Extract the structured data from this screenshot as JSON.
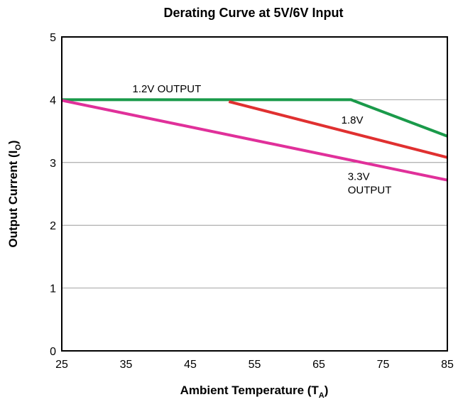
{
  "chart_data": {
    "type": "line",
    "title": "Derating Curve at 5V/6V Input",
    "xlabel": "Ambient Temperature (T",
    "xlabel_sub": "A",
    "xlabel_end": ")",
    "ylabel": "Output Current (I",
    "ylabel_sub": "O",
    "ylabel_end": ")",
    "xlim": [
      25,
      85
    ],
    "ylim": [
      0,
      5
    ],
    "xticks": [
      25,
      35,
      45,
      55,
      65,
      75,
      85
    ],
    "yticks": [
      0,
      1,
      2,
      3,
      4,
      5
    ],
    "grid": "horizontal",
    "series": [
      {
        "color": "#1a9a4a",
        "x": [
          25,
          70,
          85
        ],
        "y": [
          4.0,
          4.0,
          3.42
        ]
      },
      {
        "color": "#e03030",
        "x": [
          51,
          85
        ],
        "y": [
          3.97,
          3.08
        ]
      },
      {
        "color": "#e0309a",
        "x": [
          25,
          85
        ],
        "y": [
          3.99,
          2.72
        ]
      }
    ],
    "annotations": [
      {
        "lines": [
          "1.2V OUTPUT"
        ],
        "x": 36,
        "y": 4.12
      },
      {
        "lines": [
          "1.8V"
        ],
        "x": 68.5,
        "y": 3.62
      },
      {
        "lines": [
          "3.3V",
          "OUTPUT"
        ],
        "x": 69.5,
        "y": 2.72
      }
    ]
  }
}
